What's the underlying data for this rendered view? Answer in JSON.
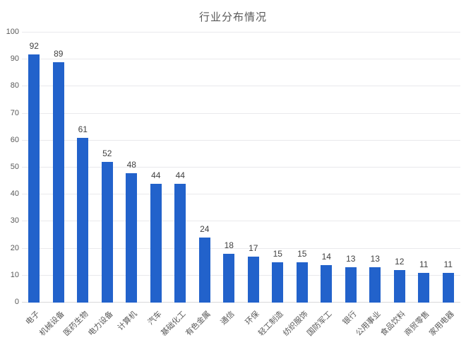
{
  "chart_data": {
    "type": "bar",
    "title": "行业分布情况",
    "categories": [
      "电子",
      "机械设备",
      "医药生物",
      "电力设备",
      "计算机",
      "汽车",
      "基础化工",
      "有色金属",
      "通信",
      "环保",
      "轻工制造",
      "纺织服饰",
      "国防军工",
      "银行",
      "公用事业",
      "食品饮料",
      "商贸零售",
      "家用电器"
    ],
    "values": [
      92,
      89,
      61,
      52,
      48,
      44,
      44,
      24,
      18,
      17,
      15,
      15,
      14,
      13,
      13,
      12,
      11,
      11
    ],
    "xlabel": "",
    "ylabel": "",
    "ylim": [
      0,
      100
    ],
    "ytick_step": 10,
    "grid": true,
    "legend": "none",
    "bar_color": "#2262cb",
    "grid_color": "#e9e9ec",
    "baseline_color": "#d8d8db",
    "title_color": "#595959",
    "tick_label_color": "#595959",
    "value_label_color": "#404040",
    "background_color": "#ffffff"
  }
}
